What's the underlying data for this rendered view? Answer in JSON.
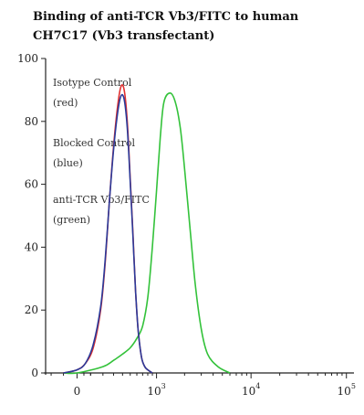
{
  "chart_data": {
    "type": "line",
    "title": [
      "Binding of anti-TCR Vb3/FITC to human",
      "CH7C17 (Vb3 transfectant)"
    ],
    "xlabel": "",
    "ylabel": "",
    "x_scale": "biexponential",
    "ylim": [
      0,
      100
    ],
    "y_ticks": [
      0,
      20,
      40,
      60,
      80,
      100
    ],
    "x_ticks": [
      {
        "value": 0,
        "base": "0",
        "exp": ""
      },
      {
        "value": 1000,
        "base": "10",
        "exp": "3"
      },
      {
        "value": 10000,
        "base": "10",
        "exp": "4"
      },
      {
        "value": 100000,
        "base": "10",
        "exp": "5"
      }
    ],
    "annotations": [
      {
        "lines": [
          "Isotype Control",
          "(red)"
        ]
      },
      {
        "lines": [
          "Blocked Control",
          "(blue)"
        ]
      },
      {
        "lines": [
          "anti-TCR Vb3/FITC",
          "(green)"
        ]
      }
    ],
    "series": [
      {
        "color": "#e03030",
        "x": [
          -100,
          0,
          60,
          120,
          180,
          220,
          260,
          300,
          340,
          380,
          420,
          460,
          500,
          540,
          580,
          620,
          680,
          740,
          800,
          900
        ],
        "y": [
          0,
          1,
          3,
          8,
          20,
          35,
          55,
          72,
          84,
          91,
          90,
          80,
          62,
          44,
          26,
          14,
          5,
          2,
          1,
          0
        ]
      },
      {
        "color": "#2a3a9a",
        "x": [
          -100,
          0,
          60,
          120,
          180,
          220,
          260,
          300,
          340,
          380,
          420,
          460,
          500,
          540,
          580,
          620,
          680,
          740,
          800,
          900
        ],
        "y": [
          0,
          1,
          3,
          9,
          21,
          36,
          55,
          71,
          82,
          88,
          87,
          78,
          61,
          43,
          26,
          14,
          5,
          2,
          1,
          0
        ]
      },
      {
        "color": "#33c23a",
        "x": [
          -100,
          0,
          200,
          300,
          400,
          500,
          600,
          700,
          800,
          900,
          1000,
          1100,
          1200,
          1400,
          1600,
          1800,
          2000,
          2300,
          2600,
          3000,
          3500,
          4500,
          6000
        ],
        "y": [
          0,
          0,
          2,
          4,
          6,
          8,
          11,
          15,
          24,
          40,
          58,
          75,
          86,
          89,
          86,
          78,
          65,
          45,
          28,
          14,
          6,
          2,
          0
        ]
      }
    ]
  }
}
